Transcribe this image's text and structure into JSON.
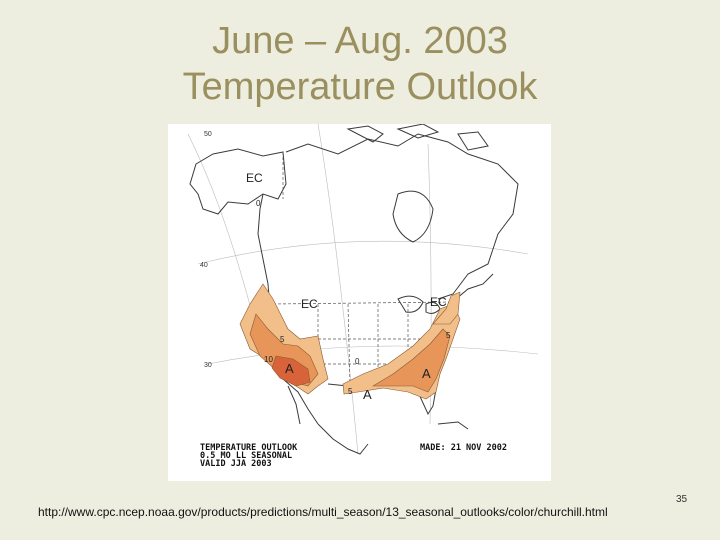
{
  "slide": {
    "title_line1": "June – Aug. 2003",
    "title_line2": "Temperature Outlook",
    "source_url": "http://www.cpc.ncep.noaa.gov/products/predictions/multi_season/13_seasonal_outlooks/color/churchill.html",
    "page_number": "35"
  },
  "map": {
    "region_labels": {
      "alaska": "EC",
      "central": "EC",
      "northeast": "EC",
      "southwest": "A",
      "southeast": "A",
      "gulf": "A"
    },
    "contour_labels": {
      "c5_west": "5",
      "c10_west": "10",
      "c5_south": "5",
      "c5_east": "5",
      "c0_a": "0",
      "c0_b": "0"
    },
    "lat_labels": {
      "l50": "50",
      "l40": "40",
      "l30": "30"
    },
    "caption": {
      "line1": "TEMPERATURE OUTLOOK",
      "line2": "0.5 MO LL SEASONAL",
      "line3": "VALID JJA 2003",
      "issued": "MADE: 21 NOV 2002"
    },
    "colors": {
      "above_light": "#f2bf8a",
      "above_mid": "#e79558",
      "above_high": "#d8633a",
      "coast": "#3a3a3a"
    }
  }
}
